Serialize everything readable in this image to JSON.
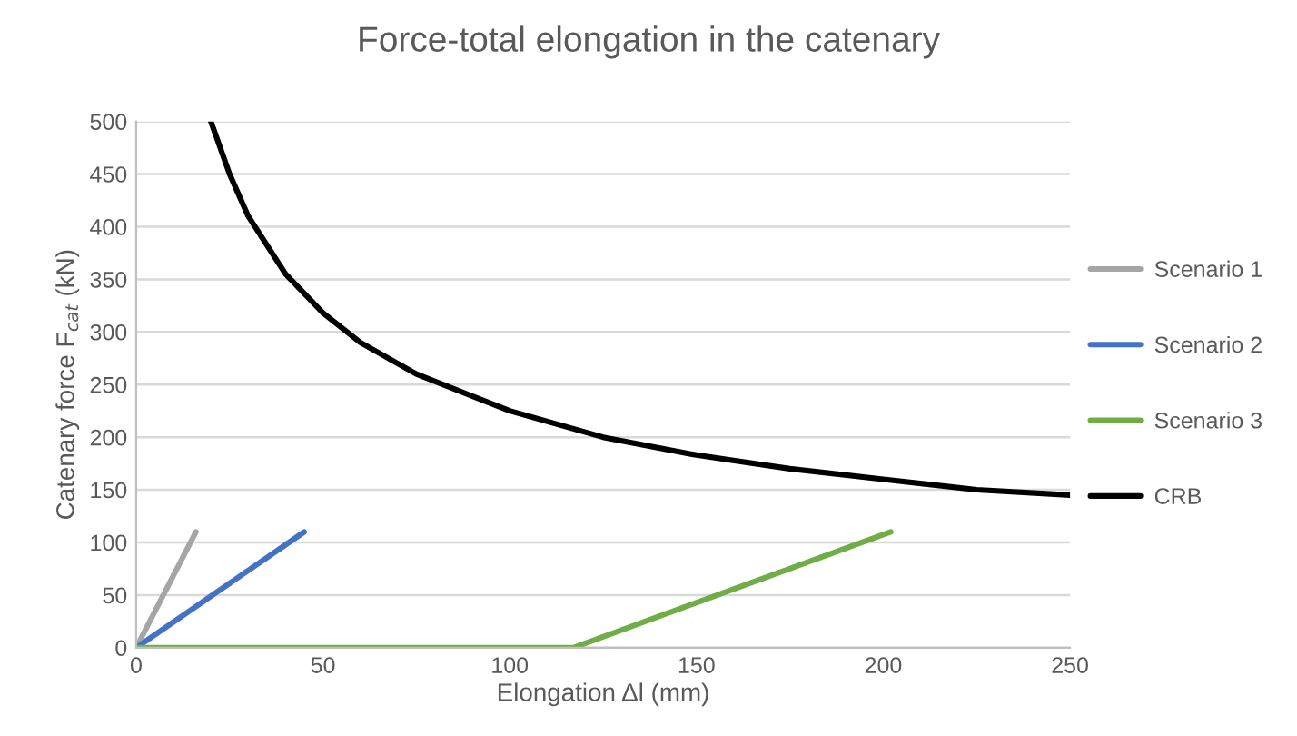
{
  "chart_data": {
    "type": "line",
    "title": "Force-total elongation in the catenary",
    "xlabel": "Elongation Δl (mm)",
    "ylabel": "Catenary force F$_{cat}$ (kN)",
    "series": [
      {
        "name": "Scenario 1",
        "color": "#a5a5a5",
        "x": [
          0,
          16
        ],
        "values": [
          0,
          110
        ]
      },
      {
        "name": "Scenario 2",
        "color": "#4472c4",
        "x": [
          0,
          45
        ],
        "values": [
          0,
          110
        ]
      },
      {
        "name": "Scenario 3",
        "color": "#70ad47",
        "x": [
          0,
          117,
          202
        ],
        "values": [
          0,
          0,
          110
        ]
      },
      {
        "name": "CRB",
        "color": "#000000",
        "x": [
          20,
          25,
          30,
          40,
          50,
          60,
          75,
          100,
          125,
          150,
          175,
          200,
          225,
          250
        ],
        "values": [
          500,
          450,
          410,
          355,
          318,
          290,
          260,
          225,
          200,
          183,
          170,
          160,
          150,
          145
        ]
      }
    ],
    "xlim": [
      0,
      250
    ],
    "xticks": [
      0,
      50,
      100,
      150,
      200,
      250
    ],
    "ylim": [
      0,
      500
    ],
    "yticks": [
      0,
      50,
      100,
      150,
      200,
      250,
      300,
      350,
      400,
      450,
      500
    ],
    "grid": "y",
    "legend": "right"
  }
}
